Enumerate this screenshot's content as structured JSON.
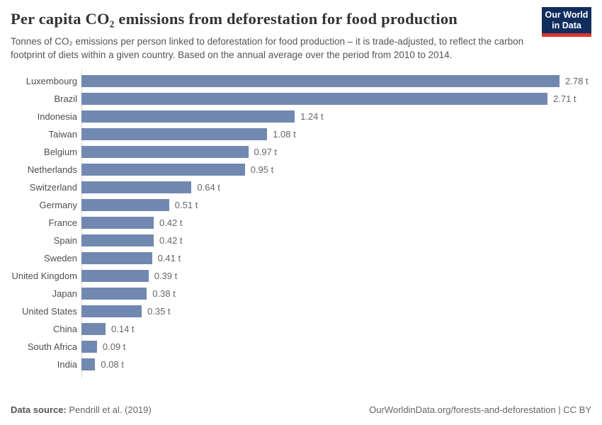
{
  "header": {
    "title": "Per capita CO₂ emissions from deforestation for food production",
    "subtitle": "Tonnes of CO₂ emissions per person linked to deforestation for food production – it is trade-adjusted, to reflect the carbon footprint of diets within a given country. Based on the annual average over the period from 2010 to 2014.",
    "logo": {
      "line1": "Our World",
      "line2": "in Data"
    }
  },
  "chart_data": {
    "type": "bar",
    "orientation": "horizontal",
    "title": "Per capita CO₂ emissions from deforestation for food production",
    "categories": [
      "Luxembourg",
      "Brazil",
      "Indonesia",
      "Taiwan",
      "Belgium",
      "Netherlands",
      "Switzerland",
      "Germany",
      "France",
      "Spain",
      "Sweden",
      "United Kingdom",
      "Japan",
      "United States",
      "China",
      "South Africa",
      "India"
    ],
    "values": [
      2.78,
      2.71,
      1.24,
      1.08,
      0.97,
      0.95,
      0.64,
      0.51,
      0.42,
      0.42,
      0.41,
      0.39,
      0.38,
      0.35,
      0.14,
      0.09,
      0.08
    ],
    "value_labels": [
      "2.78 t",
      "2.71 t",
      "1.24 t",
      "1.08 t",
      "0.97 t",
      "0.95 t",
      "0.64 t",
      "0.51 t",
      "0.42 t",
      "0.42 t",
      "0.41 t",
      "0.39 t",
      "0.38 t",
      "0.35 t",
      "0.14 t",
      "0.09 t",
      "0.08 t"
    ],
    "xlim": [
      0,
      2.78
    ],
    "grid": false,
    "legend": "none"
  },
  "footer": {
    "source_label": "Data source:",
    "source_value": "Pendrill et al. (2019)",
    "link_text": "OurWorldinData.org/forests-and-deforestation | CC BY"
  },
  "colors": {
    "bar_blue": "#7188b0",
    "logo_navy": "#102d5e",
    "logo_red": "#dc352b",
    "title_text": "#333333",
    "body_text": "#555555",
    "value_text": "#666666",
    "axis_line": "#dcdcdc"
  }
}
